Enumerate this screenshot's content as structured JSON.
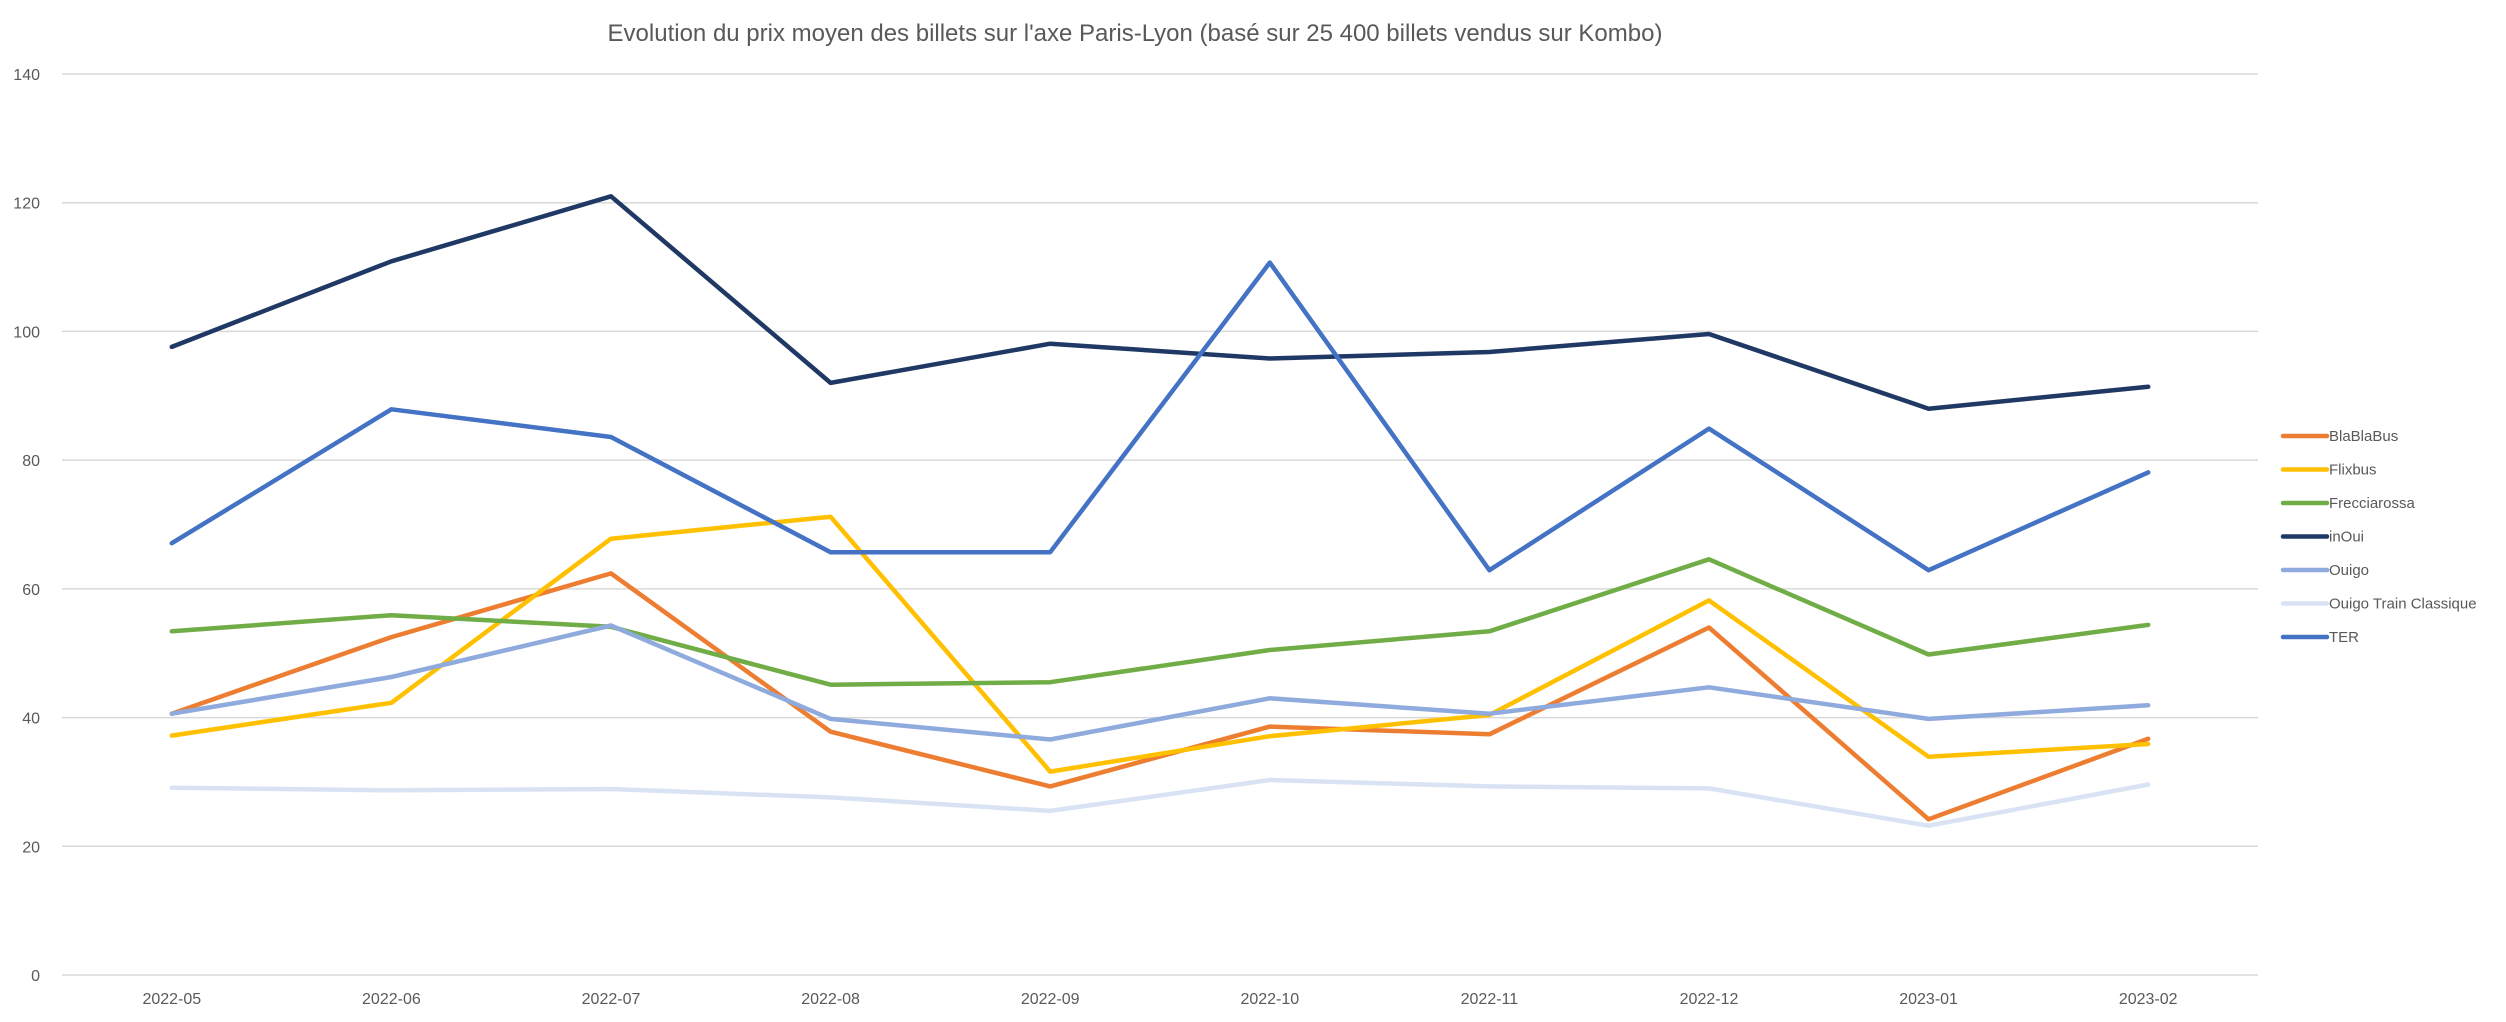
{
  "chart_data": {
    "type": "line",
    "title": "Evolution du prix moyen des billets sur l'axe Paris-Lyon (basé sur 25 400 billets vendus sur Kombo)",
    "xlabel": "",
    "ylabel": "",
    "categories": [
      "2022-05",
      "2022-06",
      "2022-07",
      "2022-08",
      "2022-09",
      "2022-10",
      "2022-11",
      "2022-12",
      "2023-01",
      "2023-02"
    ],
    "ylim": [
      0,
      140
    ],
    "yticks": [
      0,
      20,
      40,
      60,
      80,
      100,
      120,
      140
    ],
    "grid": true,
    "legend_position": "right",
    "series": [
      {
        "name": "BlaBlaBus",
        "color": "#ED7D31",
        "values": [
          40.6,
          52.5,
          62.4,
          37.8,
          29.3,
          38.6,
          37.4,
          54.0,
          24.2,
          36.7
        ]
      },
      {
        "name": "Flixbus",
        "color": "#FFC000",
        "values": [
          37.2,
          42.3,
          67.8,
          71.2,
          31.6,
          37.1,
          40.4,
          58.2,
          33.9,
          35.9
        ]
      },
      {
        "name": "Frecciarossa",
        "color": "#70AD47",
        "values": [
          53.4,
          55.9,
          54.1,
          45.1,
          45.5,
          50.5,
          53.4,
          64.6,
          49.8,
          54.4
        ]
      },
      {
        "name": "inOui",
        "color": "#203864",
        "values": [
          97.6,
          110.9,
          121.0,
          92.0,
          98.1,
          95.8,
          96.8,
          99.6,
          88.0,
          91.4
        ]
      },
      {
        "name": "Ouigo",
        "color": "#8FAADC",
        "values": [
          40.6,
          46.3,
          54.3,
          39.8,
          36.6,
          43.0,
          40.6,
          44.7,
          39.8,
          41.9
        ]
      },
      {
        "name": "Ouigo Train Classique",
        "color": "#DAE3F3",
        "values": [
          29.1,
          28.7,
          28.9,
          27.6,
          25.5,
          30.3,
          29.3,
          29.0,
          23.2,
          29.6
        ]
      },
      {
        "name": "TER",
        "color": "#4472C4",
        "values": [
          67.1,
          87.9,
          83.6,
          65.7,
          65.7,
          110.7,
          62.9,
          84.9,
          62.9,
          78.1
        ]
      }
    ]
  }
}
